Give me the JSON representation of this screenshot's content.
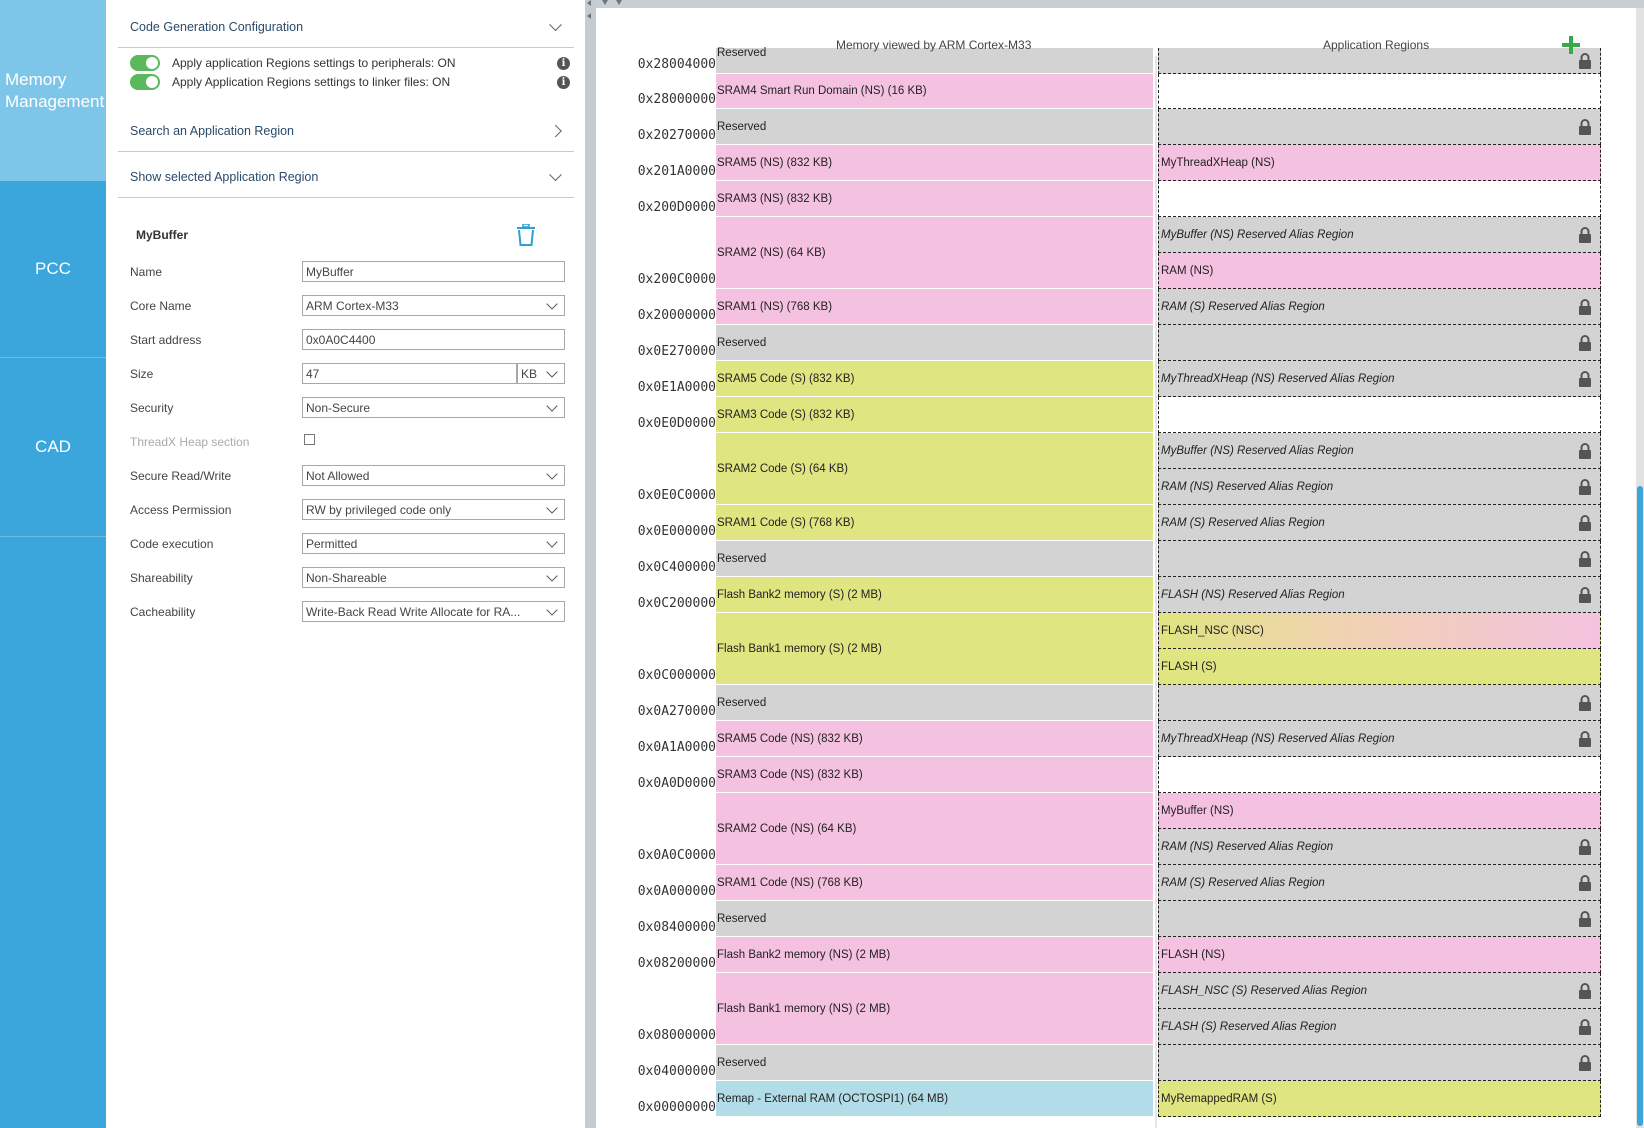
{
  "nav": {
    "items": [
      {
        "label": "Memory Management"
      },
      {
        "label": "PCC"
      },
      {
        "label": "CAD"
      }
    ]
  },
  "config": {
    "code_gen_title": "Code Generation Configuration",
    "toggles": [
      {
        "label": "Apply application Regions settings to peripherals: ON"
      },
      {
        "label": "Apply Application Regions settings to linker files: ON"
      }
    ],
    "search_title": "Search an Application Region",
    "show_selected_title": "Show selected Application Region",
    "detail_title": "MyBuffer",
    "labels": {
      "name": "Name",
      "core_name": "Core Name",
      "start_address": "Start address",
      "size": "Size",
      "security": "Security",
      "threadx": "ThreadX Heap section",
      "secure_rw": "Secure Read/Write",
      "access": "Access Permission",
      "code_exec": "Code execution",
      "shareability": "Shareability",
      "cacheability": "Cacheability"
    },
    "values": {
      "name": "MyBuffer",
      "core_name": "ARM Cortex-M33",
      "start_address": "0x0A0C4400",
      "size": "47",
      "size_unit": "KB",
      "security": "Non-Secure",
      "secure_rw": "Not Allowed",
      "access": "RW by privileged code only",
      "code_exec": "Permitted",
      "shareability": "Non-Shareable",
      "cacheability": "Write-Back Read Write Allocate for RA..."
    }
  },
  "map": {
    "col_memory": "Memory viewed by ARM Cortex-M33",
    "col_app": "Application Regions",
    "addresses": [
      "0x28004000",
      "0x28000000",
      "0x20270000",
      "0x201A0000",
      "0x200D0000",
      "0x200C0000",
      "0x20000000",
      "0x0E270000",
      "0x0E1A0000",
      "0x0E0D0000",
      "0x0E0C0000",
      "0x0E000000",
      "0x0C400000",
      "0x0C200000",
      "0x0C000000",
      "0x0A270000",
      "0x0A1A0000",
      "0x0A0D0000",
      "0x0A0C0000",
      "0x0A000000",
      "0x08400000",
      "0x08200000",
      "0x08000000",
      "0x04000000",
      "0x00000000"
    ],
    "memory": [
      "Reserved",
      "SRAM4 Smart Run Domain (NS) (16 KB)",
      "Reserved",
      "SRAM5 (NS) (832 KB)",
      "SRAM3 (NS) (832 KB)",
      "SRAM2 (NS) (64 KB)",
      "SRAM1 (NS) (768 KB)",
      "Reserved",
      "SRAM5 Code (S) (832 KB)",
      "SRAM3 Code (S) (832 KB)",
      "SRAM2 Code (S) (64 KB)",
      "SRAM1 Code (S) (768 KB)",
      "Reserved",
      "Flash Bank2 memory (S) (2 MB)",
      "Flash Bank1 memory (S) (2 MB)",
      "Reserved",
      "SRAM5 Code (NS) (832 KB)",
      "SRAM3 Code (NS) (832 KB)",
      "SRAM2 Code (NS) (64 KB)",
      "SRAM1 Code (NS) (768 KB)",
      "Reserved",
      "Flash Bank2 memory (NS) (2 MB)",
      "Flash Bank1 memory (NS) (2 MB)",
      "Reserved",
      "Remap - External RAM (OCTOSPI1) (64 MB)"
    ],
    "apps": [
      "",
      "",
      "",
      "MyThreadXHeap (NS)",
      "",
      "MyBuffer (NS) Reserved Alias Region",
      "RAM (NS)",
      "RAM (S) Reserved Alias Region",
      "",
      "MyThreadXHeap (NS) Reserved Alias Region",
      "",
      "MyBuffer (NS) Reserved Alias Region",
      "RAM (NS) Reserved Alias Region",
      "RAM (S) Reserved Alias Region",
      "",
      "FLASH (NS) Reserved Alias Region",
      "FLASH_NSC (NSC)",
      "FLASH (S)",
      "",
      "MyThreadXHeap (NS) Reserved Alias Region",
      "",
      "MyBuffer (NS)",
      "RAM (NS) Reserved Alias Region",
      "RAM (S) Reserved Alias Region",
      "",
      "FLASH (NS)",
      "FLASH_NSC (S) Reserved Alias Region",
      "FLASH (S) Reserved Alias Region",
      "",
      "MyRemappedRAM (S)"
    ]
  },
  "colors": {
    "nav_bg": "#3aa6dc",
    "nav_active": "#7dc6ea",
    "reserved": "#d3d3d3",
    "non_secure": "#f4c2e0",
    "secure": "#dfe580",
    "nsc": "#f0d3b0",
    "external": "#b2dce7",
    "toggle_on": "#5cb85c",
    "add_green": "#3aa84a"
  },
  "icons": [
    "chevron-down-icon",
    "chevron-right-icon",
    "info-icon",
    "trash-icon",
    "lock-icon",
    "plus-icon"
  ]
}
